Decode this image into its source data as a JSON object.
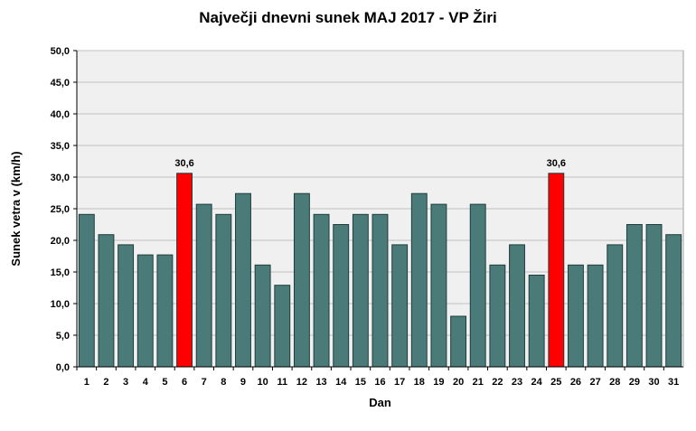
{
  "chart_data": {
    "type": "bar",
    "title": "Največji dnevni sunek MAJ 2017 - VP Žiri",
    "xlabel": "Dan",
    "ylabel": "Sunek vetra  v (km/h)",
    "ylim": [
      0,
      50
    ],
    "ytick_step": 5,
    "grid": true,
    "categories": [
      "1",
      "2",
      "3",
      "4",
      "5",
      "6",
      "7",
      "8",
      "9",
      "10",
      "11",
      "12",
      "13",
      "14",
      "15",
      "16",
      "17",
      "18",
      "19",
      "20",
      "21",
      "22",
      "23",
      "24",
      "25",
      "26",
      "27",
      "28",
      "29",
      "30",
      "31"
    ],
    "values": [
      24.1,
      20.9,
      19.3,
      17.7,
      17.7,
      30.6,
      25.7,
      24.1,
      27.4,
      16.1,
      12.9,
      27.4,
      24.1,
      22.5,
      24.1,
      24.1,
      19.3,
      27.4,
      25.7,
      8.0,
      25.7,
      16.1,
      19.3,
      14.5,
      30.6,
      16.1,
      16.1,
      19.3,
      22.5,
      22.5,
      20.9
    ],
    "colors": {
      "bar": "#4a7b78",
      "highlight": "#ff0000",
      "plot_bg": "#f0f0f0",
      "grid": "#c0c0c0"
    },
    "highlighted_days": [
      "6",
      "25"
    ],
    "data_labels": [
      {
        "category": "6",
        "text": "30,6"
      },
      {
        "category": "25",
        "text": "30,6"
      }
    ]
  }
}
